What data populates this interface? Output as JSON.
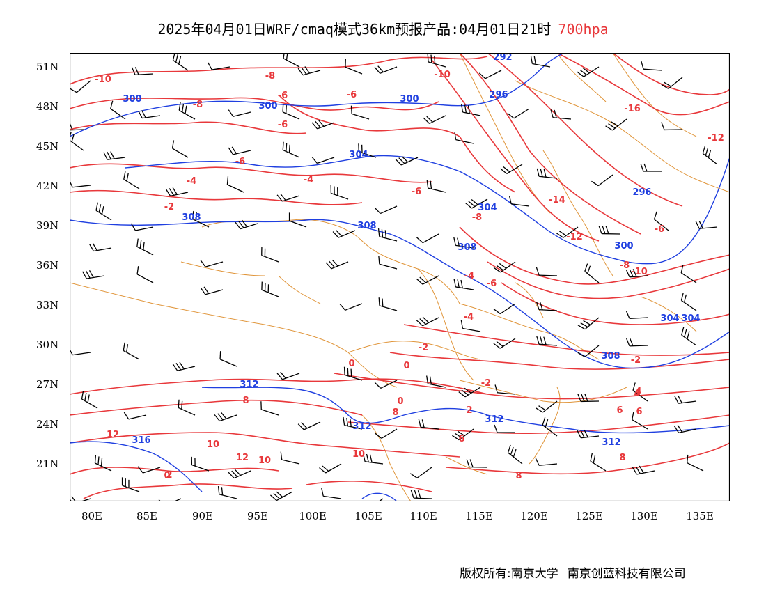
{
  "header": {
    "title": "2025年04月01日WRF/cmaq模式36km预报产品:04月01日21时",
    "level": "700hpa"
  },
  "map": {
    "lat_labels": [
      "51N",
      "48N",
      "45N",
      "42N",
      "39N",
      "36N",
      "33N",
      "30N",
      "27N",
      "24N",
      "21N"
    ],
    "lon_labels": [
      "80E",
      "85E",
      "90E",
      "95E",
      "100E",
      "105E",
      "110E",
      "115E",
      "120E",
      "125E",
      "130E",
      "135E"
    ],
    "colors": {
      "height_contour": "#1f3fe0",
      "temperature_contour": "#e8383b",
      "boundary": "#e0953a",
      "wind_barb": "#000000"
    },
    "height_labels": [
      "292",
      "296",
      "300",
      "300",
      "300",
      "304",
      "304",
      "296",
      "304",
      "308",
      "308",
      "308",
      "300",
      "304",
      "308",
      "312",
      "312",
      "312",
      "312",
      "316"
    ],
    "temperature_labels": [
      "-10",
      "-8",
      "-8",
      "-6",
      "-6",
      "-6",
      "-10",
      "-16",
      "-12",
      "-6",
      "-4",
      "-4",
      "-2",
      "-6",
      "-8",
      "-14",
      "-12",
      "-10",
      "-8",
      "-6",
      "-4",
      "-6",
      "-4",
      "-2",
      "0",
      "0",
      "-2",
      "0",
      "-2",
      "4",
      "2",
      "4",
      "6",
      "8",
      "10",
      "12",
      "10",
      "12",
      "10",
      "8",
      "6",
      "6",
      "8",
      "0",
      "2",
      "8"
    ]
  },
  "footer": {
    "copyright_left": "版权所有:南京大学",
    "copyright_right": "南京创蓝科技有限公司"
  }
}
